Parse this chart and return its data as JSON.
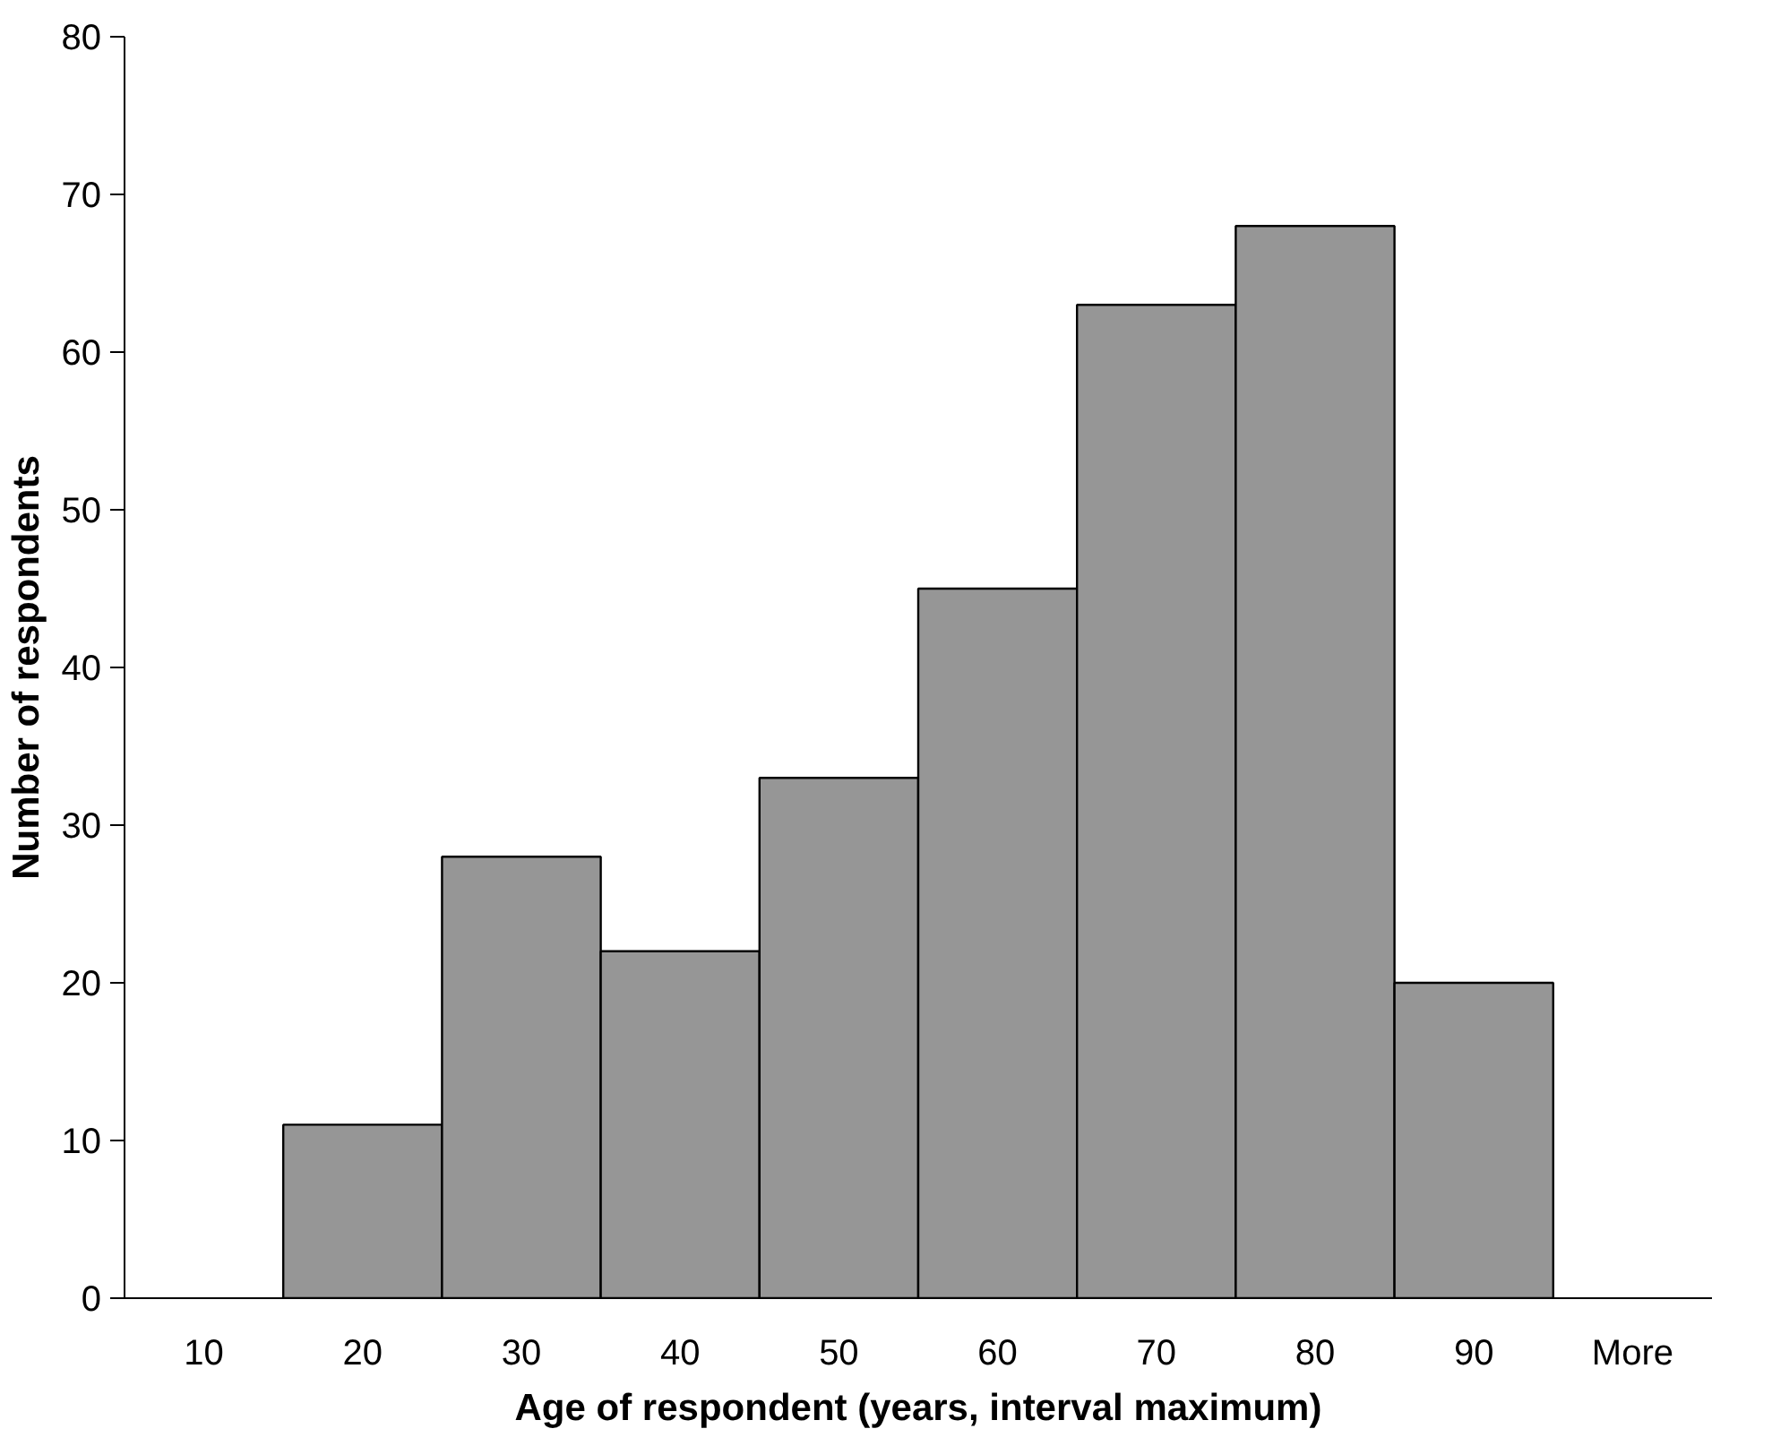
{
  "chart_data": {
    "type": "bar",
    "xlabel": "Age of respondent (years, interval maximum)",
    "ylabel": "Number of respondents",
    "categories": [
      "10",
      "20",
      "30",
      "40",
      "50",
      "60",
      "70",
      "80",
      "90",
      "More"
    ],
    "values": [
      null,
      11,
      28,
      22,
      33,
      45,
      63,
      68,
      20,
      null
    ],
    "color": "#969696",
    "ylim": [
      0,
      80
    ],
    "yticks": [
      0,
      10,
      20,
      30,
      40,
      50,
      60,
      70,
      80
    ],
    "grid": false
  }
}
